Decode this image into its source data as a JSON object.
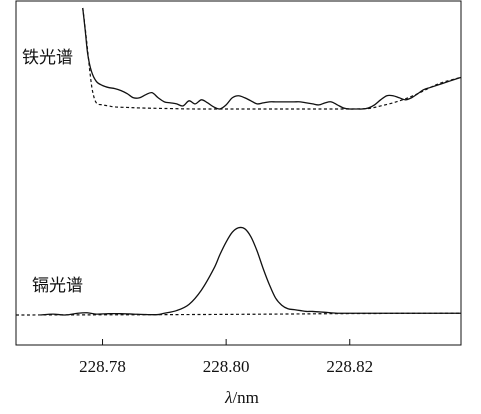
{
  "chart_data": {
    "type": "line",
    "xlabel_italic": "λ",
    "xlabel_unit": "/nm",
    "x_ticks": [
      228.78,
      228.8,
      228.82
    ],
    "x_tick_labels": [
      "228.78",
      "228.80",
      "228.82"
    ],
    "xlim": [
      228.766,
      228.838
    ],
    "grid": false,
    "panels": [
      {
        "label": "铁光谱",
        "ylim": [
          0,
          1
        ],
        "series": [
          {
            "style": "solid",
            "x": [
              228.7768,
              228.7772,
              228.7776,
              228.7782,
              228.779,
              228.78,
              228.781,
              228.782,
              228.783,
              228.784,
              228.785,
              228.786,
              228.787,
              228.788,
              228.789,
              228.79,
              228.791,
              228.792,
              228.793,
              228.794,
              228.795,
              228.796,
              228.797,
              228.798,
              228.799,
              228.8,
              228.801,
              228.802,
              228.803,
              228.804,
              228.805,
              228.806,
              228.807,
              228.808,
              228.809,
              228.81,
              228.811,
              228.812,
              228.813,
              228.814,
              228.815,
              228.816,
              228.817,
              228.818,
              228.819,
              228.82,
              228.821,
              228.822,
              228.823,
              228.824,
              228.825,
              228.826,
              228.827,
              228.828,
              228.829,
              228.83,
              228.831,
              228.832,
              228.833,
              228.834,
              228.835,
              228.836,
              228.837,
              228.838
            ],
            "y": [
              1.0,
              0.78,
              0.55,
              0.38,
              0.28,
              0.24,
              0.22,
              0.21,
              0.19,
              0.16,
              0.12,
              0.12,
              0.15,
              0.17,
              0.12,
              0.08,
              0.07,
              0.06,
              0.04,
              0.09,
              0.06,
              0.1,
              0.07,
              0.03,
              0.01,
              0.05,
              0.12,
              0.14,
              0.12,
              0.09,
              0.06,
              0.07,
              0.08,
              0.08,
              0.08,
              0.08,
              0.08,
              0.08,
              0.07,
              0.06,
              0.05,
              0.07,
              0.08,
              0.05,
              0.02,
              0.01,
              0.01,
              0.01,
              0.02,
              0.05,
              0.1,
              0.14,
              0.14,
              0.12,
              0.1,
              0.12,
              0.16,
              0.2,
              0.22,
              0.24,
              0.26,
              0.28,
              0.3,
              0.32
            ]
          },
          {
            "style": "dashed",
            "x": [
              228.7768,
              228.7772,
              228.7776,
              228.778,
              228.7784,
              228.779,
              228.78,
              228.781,
              228.782,
              228.784,
              228.786,
              228.79,
              228.795,
              228.8,
              228.805,
              228.81,
              228.815,
              228.82,
              228.823,
              228.825,
              228.827,
              228.829,
              228.831,
              228.833,
              228.835,
              228.838
            ],
            "y": [
              1.0,
              0.8,
              0.58,
              0.35,
              0.18,
              0.07,
              0.05,
              0.04,
              0.03,
              0.025,
              0.02,
              0.015,
              0.01,
              0.01,
              0.01,
              0.01,
              0.01,
              0.01,
              0.015,
              0.04,
              0.07,
              0.11,
              0.16,
              0.22,
              0.27,
              0.32
            ]
          }
        ]
      },
      {
        "label": "镉光谱",
        "ylim": [
          0,
          1
        ],
        "series": [
          {
            "style": "solid",
            "x": [
              228.77,
              228.772,
              228.774,
              228.776,
              228.7775,
              228.779,
              228.781,
              228.783,
              228.785,
              228.787,
              228.789,
              228.79,
              228.792,
              228.794,
              228.796,
              228.798,
              228.799,
              228.8,
              228.801,
              228.802,
              228.803,
              228.804,
              228.805,
              228.806,
              228.807,
              228.808,
              228.809,
              228.81,
              228.811,
              228.812,
              228.813,
              228.814,
              228.816,
              228.818,
              228.82,
              228.825,
              228.83,
              228.835,
              228.838
            ],
            "y": [
              0.0,
              0.01,
              0.0,
              0.02,
              0.025,
              0.01,
              0.015,
              0.015,
              0.01,
              0.005,
              0.005,
              0.02,
              0.05,
              0.12,
              0.28,
              0.52,
              0.68,
              0.82,
              0.93,
              0.98,
              0.97,
              0.88,
              0.72,
              0.52,
              0.34,
              0.19,
              0.11,
              0.07,
              0.06,
              0.05,
              0.04,
              0.04,
              0.03,
              0.02,
              0.02,
              0.02,
              0.02,
              0.02,
              0.02
            ]
          },
          {
            "style": "dashed",
            "x": [
              228.766,
              228.78,
              228.79,
              228.8,
              228.81,
              228.82,
              228.838
            ],
            "y": [
              0.0,
              0.002,
              0.004,
              0.007,
              0.011,
              0.016,
              0.02
            ]
          }
        ]
      }
    ]
  }
}
